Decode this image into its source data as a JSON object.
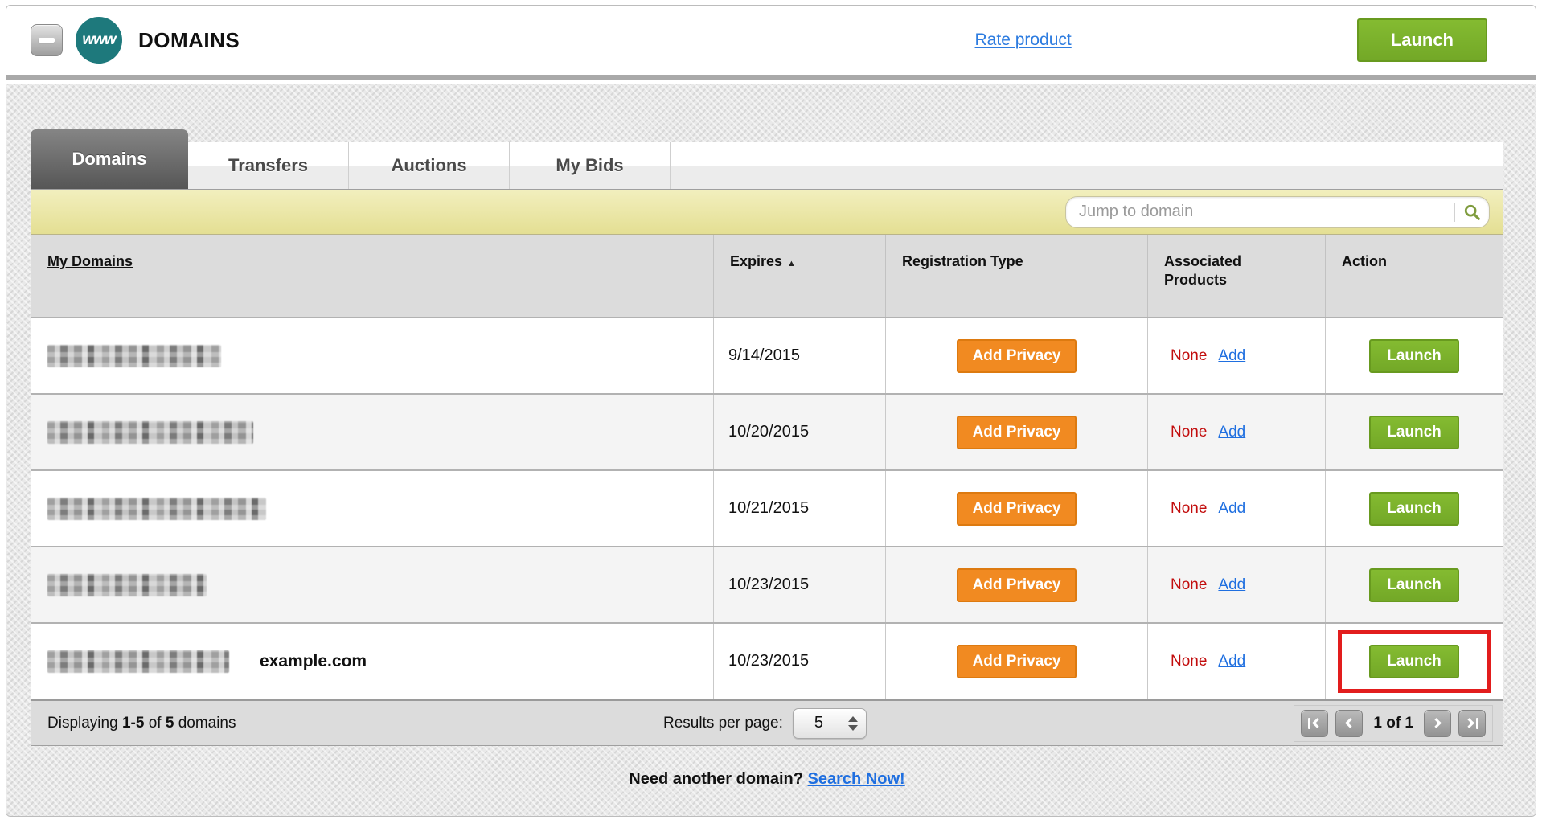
{
  "header": {
    "title": "DOMAINS",
    "product_icon_text": "www",
    "rate_link_label": "Rate product",
    "launch_label": "Launch"
  },
  "tabs": [
    {
      "label": "Domains",
      "active": true
    },
    {
      "label": "Transfers",
      "active": false
    },
    {
      "label": "Auctions",
      "active": false
    },
    {
      "label": "My Bids",
      "active": false
    }
  ],
  "search": {
    "placeholder": "Jump to domain"
  },
  "table": {
    "columns": [
      "My Domains",
      "Expires",
      "Registration Type",
      "Associated Products",
      "Action"
    ],
    "sorted_by": "Expires",
    "sort_direction": "ascending",
    "add_privacy_label": "Add Privacy",
    "launch_label": "Launch",
    "add_label": "Add",
    "rows": [
      {
        "domain_redacted": true,
        "blur_width": 216,
        "expires": "9/14/2015",
        "registration_action": "Add Privacy",
        "associated": "None",
        "note": "",
        "highlighted": false
      },
      {
        "domain_redacted": true,
        "blur_width": 256,
        "expires": "10/20/2015",
        "registration_action": "Add Privacy",
        "associated": "None",
        "note": "",
        "highlighted": false
      },
      {
        "domain_redacted": true,
        "blur_width": 272,
        "expires": "10/21/2015",
        "registration_action": "Add Privacy",
        "associated": "None",
        "note": "",
        "highlighted": false
      },
      {
        "domain_redacted": true,
        "blur_width": 198,
        "expires": "10/23/2015",
        "registration_action": "Add Privacy",
        "associated": "None",
        "note": "",
        "highlighted": false
      },
      {
        "domain_redacted": true,
        "blur_width": 226,
        "expires": "10/23/2015",
        "registration_action": "Add Privacy",
        "associated": "None",
        "note": "example.com",
        "highlighted": true
      }
    ]
  },
  "footer": {
    "displaying_prefix": "Displaying",
    "range": "1-5",
    "of_word": "of",
    "total": "5",
    "domains_word": "domains",
    "results_per_page_label": "Results per page:",
    "results_per_page_value": "5",
    "page_status": "1 of 1"
  },
  "bottom": {
    "question": "Need another domain?",
    "link_label": "Search Now!"
  },
  "colors": {
    "accent_green": "#7db32b",
    "accent_orange": "#f18a21",
    "link_blue": "#2d7ce0",
    "status_red": "#c20d0d",
    "annotation_red": "#e21d1d",
    "brand_teal": "#1e797c"
  }
}
